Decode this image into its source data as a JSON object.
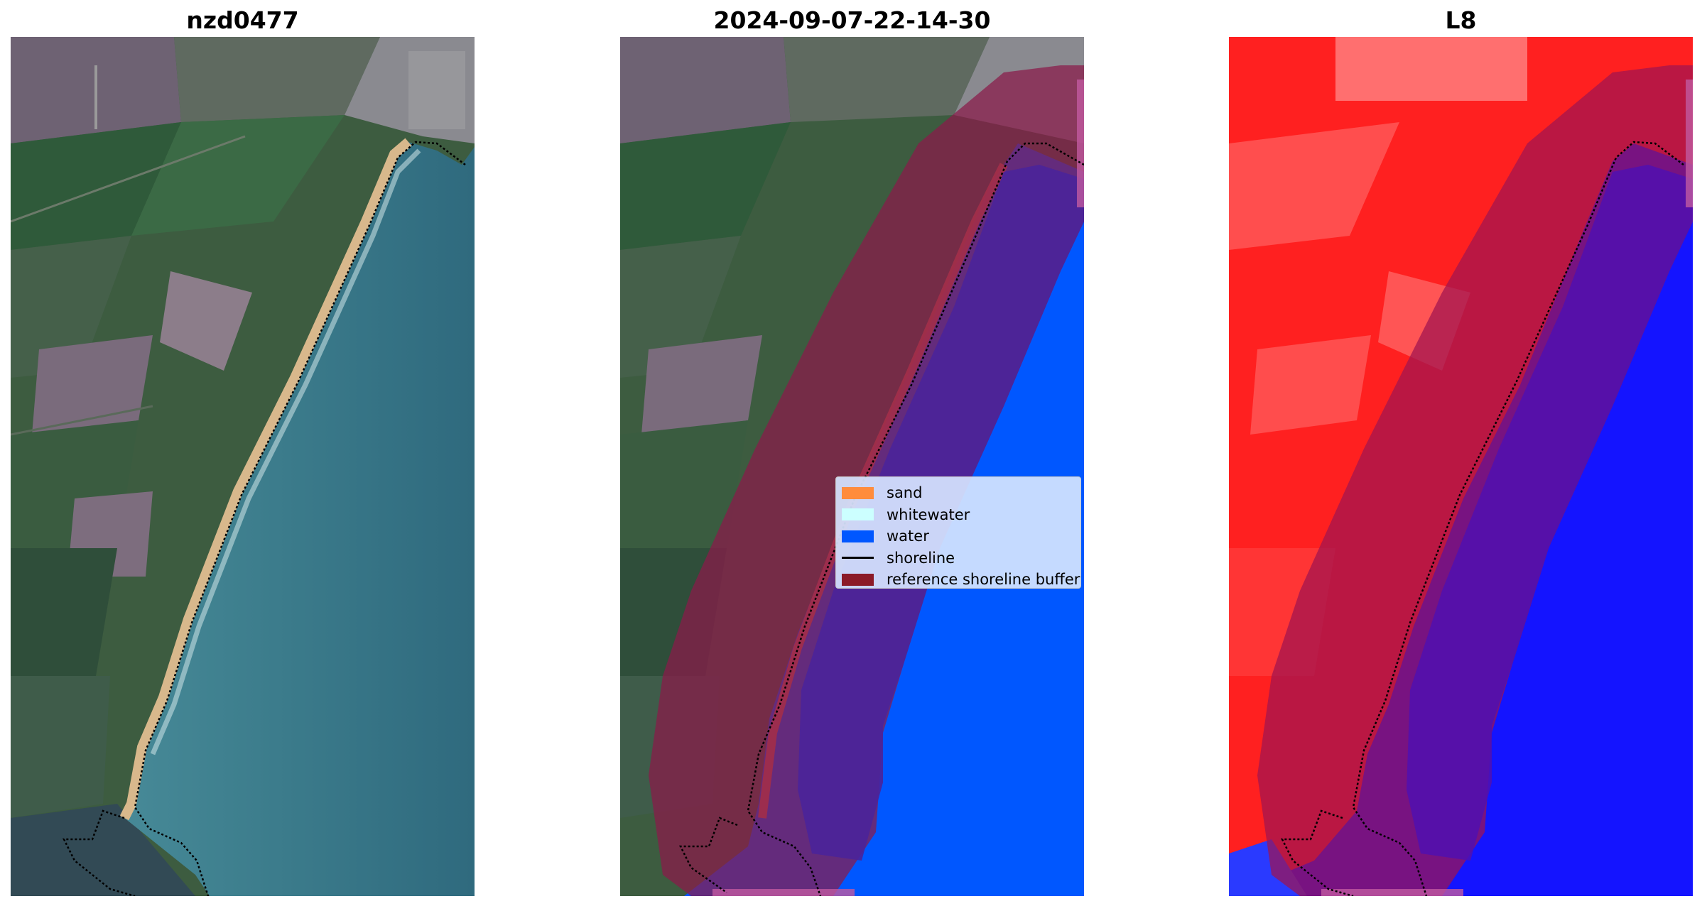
{
  "panels": [
    {
      "title": "nzd0477",
      "content": "rgb-satellite-image"
    },
    {
      "title": "2024-09-07-22-14-30",
      "content": "classified-image"
    },
    {
      "title": "L8",
      "content": "water-index-image"
    }
  ],
  "legend": {
    "items": [
      {
        "label": "sand",
        "color": "#ff8c3c",
        "kind": "patch"
      },
      {
        "label": "whitewater",
        "color": "#ccffff",
        "kind": "patch"
      },
      {
        "label": "water",
        "color": "#0057ff",
        "kind": "patch"
      },
      {
        "label": "shoreline",
        "color": "#000000",
        "kind": "line"
      },
      {
        "label": "reference shoreline buffer",
        "color": "#8b1a28",
        "kind": "patch"
      }
    ]
  },
  "colors": {
    "land_green": "#3d5c40",
    "field_purple": "#6e6273",
    "ocean_teal": "#3e7f8e",
    "beach_sand": "#d8b88c",
    "buffer_overlay": "#8b1a4a",
    "index_red": "#ff2020",
    "index_blue": "#1414ff"
  }
}
